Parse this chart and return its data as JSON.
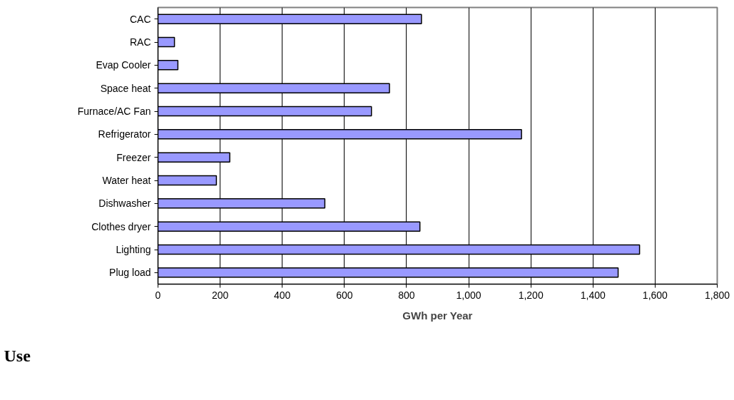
{
  "chart_data": {
    "type": "bar",
    "orientation": "horizontal",
    "xlabel": "GWh per Year",
    "categories": [
      "CAC",
      "RAC",
      "Evap Cooler",
      "Space heat",
      "Furnace/AC Fan",
      "Refrigerator",
      "Freezer",
      "Water heat",
      "Dishwasher",
      "Clothes dryer",
      "Lighting",
      "Plug load"
    ],
    "values": [
      848,
      53,
      64,
      745,
      687,
      1170,
      231,
      188,
      537,
      843,
      1550,
      1481
    ],
    "color": "#9999ff",
    "xlim": [
      0,
      1800
    ],
    "xticks": [
      0,
      200,
      400,
      600,
      800,
      {
        "value": 1000,
        "label": "1,000"
      },
      {
        "value": 1200,
        "label": "1,200"
      },
      {
        "value": 1400,
        "label": "1,400"
      },
      {
        "value": 1600,
        "label": "1,600"
      },
      {
        "value": 1800,
        "label": "1,800"
      }
    ],
    "grid": "x",
    "annotations": [
      "Use"
    ]
  }
}
